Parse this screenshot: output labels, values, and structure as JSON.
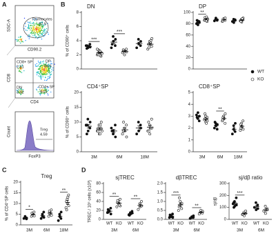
{
  "panel_labels": [
    "A",
    "B",
    "C",
    "D"
  ],
  "flow": [
    {
      "ylabel": "SSC-A",
      "xlabel": "CD90.2",
      "gates": [
        {
          "label": "Thymocytes",
          "value": 97.9
        }
      ]
    },
    {
      "ylabel": "CD8",
      "xlabel": "CD4",
      "gates": [
        {
          "label": "CD8+ SP",
          "value": 2.51
        },
        {
          "label": "DP",
          "value": 84.6
        },
        {
          "label": "DN",
          "value": 3.92
        },
        {
          "label": "CD4+ SP",
          "value": 9.01
        }
      ]
    },
    {
      "ylabel": "Count",
      "xlabel": "FoxP3",
      "gates": [
        {
          "label": "Treg",
          "value": 4.59
        }
      ]
    }
  ],
  "chart_data": [
    {
      "type": "dotplot",
      "title": "DN",
      "ylabel": "% of CD90⁺ cells",
      "ylim": [
        0,
        8
      ],
      "yticks": [
        0,
        2,
        4,
        6,
        8
      ],
      "series": [
        {
          "name": "WT",
          "fill": "#111111",
          "values": [
            [
              3.3,
              3.0,
              3.2,
              3.5,
              3.1,
              2.9,
              3.3
            ],
            [
              3.0,
              4.6,
              3.9,
              3.3,
              4.2,
              3.5
            ],
            [
              3.0,
              4.2,
              3.6,
              3.3,
              3.9
            ]
          ],
          "mean": [
            3.2,
            3.8,
            3.6
          ],
          "sem": [
            0.1,
            0.25,
            0.2
          ]
        },
        {
          "name": "KO",
          "fill": "#ffffff",
          "values": [
            [
              2.0,
              2.4,
              2.6,
              1.8,
              2.3,
              2.1,
              2.7,
              2.5,
              1.9,
              2.2,
              2.8,
              2.0
            ],
            [
              2.3,
              2.6,
              2.0,
              2.8,
              2.4,
              2.7,
              2.5
            ],
            [
              2.8,
              3.9,
              3.6,
              3.2,
              4.3,
              3.5,
              3.0,
              3.7,
              4.0
            ]
          ],
          "mean": [
            2.3,
            2.5,
            3.5
          ],
          "sem": [
            0.1,
            0.1,
            0.15
          ]
        }
      ],
      "significance": [
        "***",
        "***",
        null
      ]
    },
    {
      "type": "dotplot",
      "title": "DP",
      "ylim": [
        0,
        100
      ],
      "yticks": [
        0,
        20,
        40,
        60,
        80,
        100
      ],
      "series": [
        {
          "fill": "#111111",
          "values": [
            [
              80,
              85,
              78,
              84,
              82,
              86,
              81
            ],
            [
              85,
              88,
              90,
              86,
              87
            ],
            [
              84,
              88,
              82,
              87,
              86
            ]
          ],
          "mean": [
            82,
            87,
            85.5
          ],
          "sem": [
            1.1,
            0.9,
            1.1
          ]
        },
        {
          "fill": "#ffffff",
          "values": [
            [
              86,
              90,
              88,
              84,
              89,
              91,
              87,
              85,
              92,
              88
            ],
            [
              84,
              87,
              89,
              86,
              90,
              85,
              88
            ],
            [
              85,
              88,
              83,
              87,
              90,
              86,
              84,
              89
            ]
          ],
          "mean": [
            88,
            87,
            86.5
          ],
          "sem": [
            0.8,
            0.8,
            0.8
          ]
        }
      ],
      "significance": [
        "**",
        null,
        null
      ]
    },
    {
      "type": "dotplot",
      "title": "CD4⁺SP",
      "ylabel": "% of CD90⁺ cells",
      "categories": [
        "3M",
        "6M",
        "18M"
      ],
      "ylim": [
        0,
        20
      ],
      "yticks": [
        0,
        5,
        10,
        15,
        20
      ],
      "series": [
        {
          "fill": "#111111",
          "values": [
            [
              9,
              11,
              7,
              8,
              10,
              6,
              9
            ],
            [
              8,
              6,
              7,
              9,
              5,
              7
            ],
            [
              6,
              10,
              7,
              9,
              8
            ]
          ],
          "mean": [
            8.6,
            7,
            8
          ],
          "sem": [
            0.6,
            0.6,
            0.7
          ]
        },
        {
          "fill": "#ffffff",
          "values": [
            [
              7,
              9,
              6,
              8,
              10,
              7,
              8,
              6,
              9,
              7
            ],
            [
              6,
              8,
              7,
              9,
              5,
              7,
              10
            ],
            [
              7,
              9,
              6,
              11,
              8,
              10,
              7,
              8
            ]
          ],
          "mean": [
            7.7,
            7.4,
            8.3
          ],
          "sem": [
            0.4,
            0.6,
            0.6
          ]
        }
      ],
      "significance": [
        null,
        null,
        null
      ]
    },
    {
      "type": "dotplot",
      "title": "CD8⁺SP",
      "categories": [
        "3M",
        "6M",
        "18M"
      ],
      "ylim": [
        0,
        5
      ],
      "yticks": [
        0,
        1,
        2,
        3,
        4,
        5
      ],
      "series": [
        {
          "fill": "#111111",
          "values": [
            [
              3.1,
              2.8,
              3.3,
              2.6,
              3.0,
              2.9
            ],
            [
              2.0,
              2.4,
              2.2,
              1.9,
              2.3,
              2.5
            ],
            [
              1.5,
              2.2,
              1.9,
              1.7,
              2.4
            ]
          ],
          "mean": [
            2.95,
            2.2,
            1.9
          ],
          "sem": [
            0.1,
            0.1,
            0.15
          ]
        },
        {
          "fill": "#ffffff",
          "values": [
            [
              2.7,
              3.0,
              2.5,
              2.9,
              2.6,
              3.2,
              2.8,
              2.4
            ],
            [
              2.6,
              3.0,
              2.8,
              2.4,
              3.2,
              2.7,
              2.9
            ],
            [
              1.8,
              2.4,
              2.1,
              2.6,
              1.9,
              2.3,
              2.0
            ]
          ],
          "mean": [
            2.76,
            2.8,
            2.15
          ],
          "sem": [
            0.1,
            0.1,
            0.1
          ]
        }
      ],
      "significance": [
        null,
        "**",
        null
      ]
    },
    {
      "type": "dotplot",
      "title": "Treg",
      "ylabel": "% of CD4⁺SP cells",
      "categories": [
        "3M",
        "6M",
        "18M"
      ],
      "ylim": [
        0,
        20
      ],
      "yticks": [
        0,
        5,
        10,
        15,
        20
      ],
      "series": [
        {
          "fill": "#111111",
          "values": [
            [
              3,
              4,
              3.5,
              2.8,
              3.2
            ],
            [
              3,
              5,
              4,
              6,
              3.5
            ],
            [
              2,
              5,
              4,
              3,
              6
            ]
          ],
          "mean": [
            3.3,
            4.3,
            4
          ],
          "sem": [
            0.2,
            0.5,
            0.7
          ]
        },
        {
          "fill": "#ffffff",
          "values": [
            [
              4,
              5,
              4.5,
              6,
              4.2,
              5.5
            ],
            [
              4,
              6,
              5,
              7,
              4.5,
              5.5,
              6.5
            ],
            [
              8,
              12,
              10,
              14,
              9,
              11,
              7,
              13
            ]
          ],
          "mean": [
            4.9,
            5.5,
            10.5
          ],
          "sem": [
            0.3,
            0.4,
            0.9
          ]
        }
      ],
      "significance": [
        "*",
        null,
        "**"
      ]
    },
    {
      "type": "dotplot",
      "title": "sjTREC",
      "ylabel": "TREC / 10⁵ cells (x10³)",
      "categories": [
        "3M",
        "6M"
      ],
      "ylim": [
        0,
        80
      ],
      "yticks": [
        0,
        20,
        40,
        60,
        80
      ],
      "series": [
        {
          "name": "WT",
          "fill": "#111111",
          "values": [
            [
              15,
              20,
              18,
              25,
              12,
              22,
              16
            ],
            [
              10,
              15,
              12,
              18,
              14,
              9
            ]
          ],
          "mean": [
            18.3,
            13
          ],
          "sem": [
            1.6,
            1.4
          ]
        },
        {
          "name": "KO",
          "fill": "#ffffff",
          "values": [
            [
              28,
              40,
              35,
              45,
              30,
              38,
              42,
              32
            ],
            [
              22,
              35,
              28,
              40,
              30
            ]
          ],
          "mean": [
            36,
            31
          ],
          "sem": [
            2,
            3
          ]
        }
      ],
      "significance": [
        "**",
        "**"
      ]
    },
    {
      "type": "dotplot",
      "title": "dβTREC",
      "categories": [
        "3M",
        "6M"
      ],
      "ylim": [
        0,
        2
      ],
      "yticks": [
        {
          "value": 0,
          "label": "0.0"
        },
        {
          "value": 0.5,
          "label": "0.5"
        },
        {
          "value": 1,
          "label": "1.0"
        },
        {
          "value": 1.5,
          "label": "1.5"
        },
        {
          "value": 2,
          "label": "2.0"
        }
      ],
      "series": [
        {
          "name": "WT",
          "fill": "#111111",
          "values": [
            [
              0.1,
              0.2,
              0.15,
              0.3,
              0.1,
              0.25
            ],
            [
              0.05,
              0.1,
              0.15,
              0.1,
              0.2
            ]
          ],
          "mean": [
            0.18,
            0.12
          ],
          "sem": [
            0.03,
            0.03
          ]
        },
        {
          "name": "KO",
          "fill": "#ffffff",
          "values": [
            [
              0.5,
              0.8,
              1.0,
              0.6,
              0.9,
              0.7,
              1.2
            ],
            [
              0.3,
              0.4,
              0.5,
              0.35,
              0.45
            ]
          ],
          "mean": [
            0.81,
            0.4
          ],
          "sem": [
            0.09,
            0.04
          ]
        }
      ],
      "significance": [
        "***",
        "**"
      ]
    },
    {
      "type": "dotplot",
      "title": "sj/dβ ratio",
      "ylabel": "sj/dβ",
      "categories": [
        "3M",
        "6M"
      ],
      "ylim": [
        0,
        300
      ],
      "yticks": [
        0,
        100,
        200,
        300
      ],
      "series": [
        {
          "name": "WT",
          "fill": "#111111",
          "values": [
            [
              130,
              150,
              110,
              180,
              120,
              140,
              100
            ],
            [
              100,
              140,
              80,
              120,
              90
            ]
          ],
          "mean": [
            133,
            106
          ],
          "sem": [
            10,
            11
          ]
        },
        {
          "name": "KO",
          "fill": "#ffffff",
          "values": [
            [
              40,
              60,
              30,
              70,
              50,
              45
            ],
            [
              70,
              110,
              50,
              90,
              80
            ]
          ],
          "mean": [
            49,
            80
          ],
          "sem": [
            6,
            10
          ]
        }
      ],
      "significance": [
        "***",
        null
      ]
    }
  ]
}
